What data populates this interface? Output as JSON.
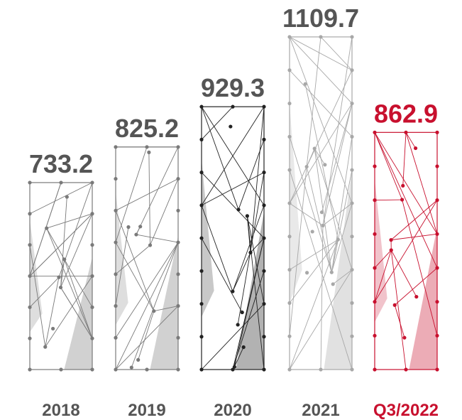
{
  "chart_data": {
    "type": "bar",
    "categories": [
      "2018",
      "2019",
      "2020",
      "2021",
      "Q3/2022"
    ],
    "values": [
      733.2,
      825.2,
      929.3,
      1109.7,
      862.9
    ],
    "colors": [
      "#7a7a7a",
      "#7a7a7a",
      "#222222",
      "#a8a8a8",
      "#c8102e"
    ],
    "label_colors": [
      "#555555",
      "#555555",
      "#555555",
      "#555555",
      "#c8102e"
    ],
    "ylim": [
      250,
      1150
    ]
  }
}
